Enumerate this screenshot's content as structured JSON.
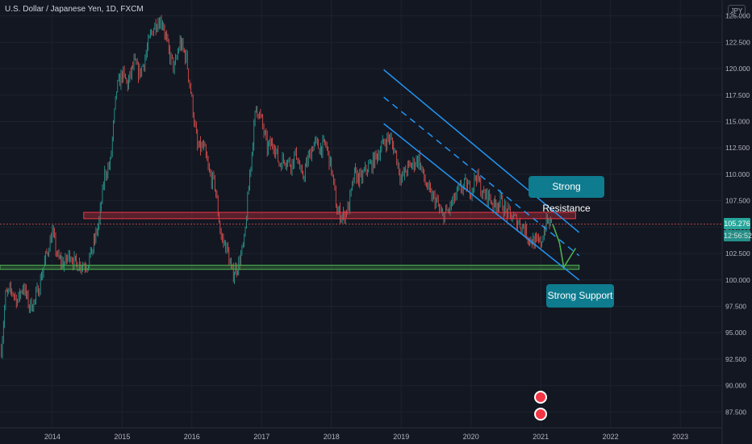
{
  "header": {
    "symbol_title": "U.S. Dollar / Japanese Yen, 1D, FXCM",
    "currency": "JPY"
  },
  "price_axis": {
    "labels": [
      "125.000",
      "122.500",
      "120.000",
      "117.500",
      "115.000",
      "112.500",
      "110.000",
      "107.500",
      "105.000",
      "102.500",
      "100.000",
      "97.500",
      "95.000",
      "92.500",
      "90.000",
      "87.500"
    ],
    "last_price": "105.276",
    "countdown": "12:56:52"
  },
  "time_axis": {
    "labels": [
      "2014",
      "2015",
      "2016",
      "2017",
      "2018",
      "2019",
      "2020",
      "2021",
      "2022",
      "2023"
    ]
  },
  "annotations": {
    "resistance_label": "Strong Resistance",
    "support_label": "Strong Support"
  },
  "colors": {
    "background": "#131722",
    "up": "#26a69a",
    "down": "#ef5350",
    "channel": "#2196f3",
    "support": "#4caf50",
    "resistance": "#f23645",
    "callout": "#0e7b8e",
    "projection": "#4caf50"
  },
  "chart_data": {
    "type": "candlestick",
    "title": "U.S. Dollar / Japanese Yen, 1D, FXCM",
    "x_range": [
      2013.25,
      2023.6
    ],
    "y_range": [
      86,
      126.5
    ],
    "price_series": {
      "name": "USDJPY",
      "x": [
        2013.27,
        2013.33,
        2013.42,
        2013.5,
        2013.58,
        2013.67,
        2013.75,
        2013.83,
        2013.92,
        2014.0,
        2014.08,
        2014.17,
        2014.25,
        2014.33,
        2014.42,
        2014.5,
        2014.58,
        2014.67,
        2014.75,
        2014.83,
        2014.92,
        2015.0,
        2015.08,
        2015.17,
        2015.25,
        2015.33,
        2015.42,
        2015.5,
        2015.58,
        2015.67,
        2015.75,
        2015.83,
        2015.92,
        2016.0,
        2016.08,
        2016.17,
        2016.25,
        2016.33,
        2016.42,
        2016.5,
        2016.58,
        2016.67,
        2016.75,
        2016.83,
        2016.92,
        2017.0,
        2017.08,
        2017.17,
        2017.25,
        2017.33,
        2017.42,
        2017.5,
        2017.58,
        2017.67,
        2017.75,
        2017.83,
        2017.92,
        2018.0,
        2018.08,
        2018.17,
        2018.25,
        2018.33,
        2018.42,
        2018.5,
        2018.58,
        2018.67,
        2018.75,
        2018.83,
        2018.92,
        2019.0,
        2019.08,
        2019.17,
        2019.25,
        2019.33,
        2019.42,
        2019.5,
        2019.58,
        2019.67,
        2019.75,
        2019.83,
        2019.92,
        2020.0,
        2020.08,
        2020.17,
        2020.25,
        2020.33,
        2020.42,
        2020.5,
        2020.58,
        2020.67,
        2020.75,
        2020.83,
        2020.92,
        2021.0,
        2021.08,
        2021.17
      ],
      "y": [
        93.5,
        98.5,
        99,
        98,
        99.5,
        97.5,
        98,
        100,
        102.5,
        104.5,
        102,
        101.5,
        102.5,
        101.5,
        101.5,
        101.5,
        103,
        105.5,
        110,
        111,
        118,
        119.5,
        118.5,
        120.5,
        119.5,
        121,
        123.5,
        124.5,
        124.5,
        121.5,
        120,
        122.5,
        121,
        117,
        112.5,
        112.5,
        110,
        109,
        104,
        103,
        100.5,
        101.5,
        103.5,
        110,
        116.5,
        115,
        112.5,
        113,
        111,
        111.5,
        111,
        112,
        109.5,
        111.5,
        113,
        112.5,
        112.8,
        110.5,
        106.5,
        106,
        107,
        110,
        109.5,
        110.5,
        111,
        112,
        113,
        113.5,
        112,
        109.5,
        110.5,
        111,
        111.5,
        109.5,
        108,
        107.5,
        106,
        106.5,
        107.5,
        108.5,
        109,
        108.5,
        110,
        108,
        108,
        107,
        107.5,
        106.5,
        106,
        105.5,
        105,
        104,
        103.5,
        103.5,
        105.5,
        105.3
      ]
    },
    "horizontal_zones": [
      {
        "name": "resistance",
        "y_low": 105.8,
        "y_high": 106.4,
        "x_start": 2014.45,
        "x_end": 2021.5
      },
      {
        "name": "support",
        "y_low": 101.0,
        "y_high": 101.4,
        "x_start": 2013.25,
        "x_end": 2021.55
      }
    ],
    "trend_lines": [
      {
        "name": "channel-upper",
        "style": "solid",
        "points": [
          [
            2018.75,
            119.9
          ],
          [
            2021.55,
            104.5
          ]
        ]
      },
      {
        "name": "channel-middle",
        "style": "dashed",
        "points": [
          [
            2018.75,
            117.3
          ],
          [
            2021.55,
            102.3
          ]
        ]
      },
      {
        "name": "channel-lower",
        "style": "solid",
        "points": [
          [
            2018.75,
            114.8
          ],
          [
            2021.55,
            100.0
          ]
        ]
      }
    ],
    "projection_path": [
      [
        2021.17,
        105.3
      ],
      [
        2021.27,
        103.5
      ],
      [
        2021.33,
        101.2
      ],
      [
        2021.5,
        103.0
      ]
    ],
    "last_price": 105.276
  }
}
